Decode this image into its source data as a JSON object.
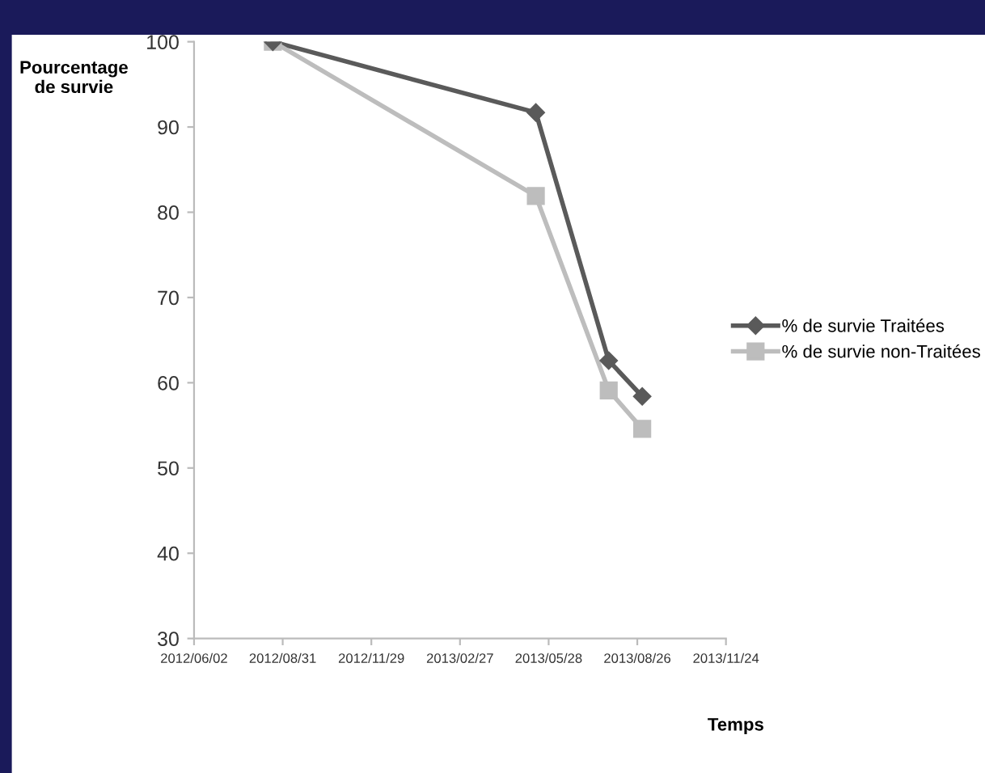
{
  "chart_data": {
    "type": "line",
    "xlabel": "Temps",
    "ylabel": "Pourcentage\nde survie",
    "x": [
      "2012-08-21",
      "2013-05-15",
      "2013-07-28",
      "2013-08-31"
    ],
    "series": [
      {
        "name": "% de survie Traitées",
        "color": "#5a5a5a",
        "marker": "diamond",
        "values": [
          100,
          91.7,
          62.6,
          58.4
        ]
      },
      {
        "name": "% de survie non-Traitées",
        "color": "#bdbdbd",
        "marker": "square",
        "values": [
          100,
          81.9,
          59.1,
          54.6
        ]
      }
    ],
    "xlim": [
      "2012-06-02",
      "2013-11-24"
    ],
    "xticks": [
      {
        "value": "2012-06-02",
        "label": "2012/06/02"
      },
      {
        "value": "2012-08-31",
        "label": "2012/08/31"
      },
      {
        "value": "2012-11-29",
        "label": "2012/11/29"
      },
      {
        "value": "2013-02-27",
        "label": "2013/02/27"
      },
      {
        "value": "2013-05-28",
        "label": "2013/05/28"
      },
      {
        "value": "2013-08-26",
        "label": "2013/08/26"
      },
      {
        "value": "2013-11-24",
        "label": "2013/11/24"
      }
    ],
    "ylim": [
      30,
      100
    ],
    "yticks": [
      30,
      40,
      50,
      60,
      70,
      80,
      90,
      100
    ],
    "grid": false,
    "legend": "right",
    "line_style": "solid"
  }
}
